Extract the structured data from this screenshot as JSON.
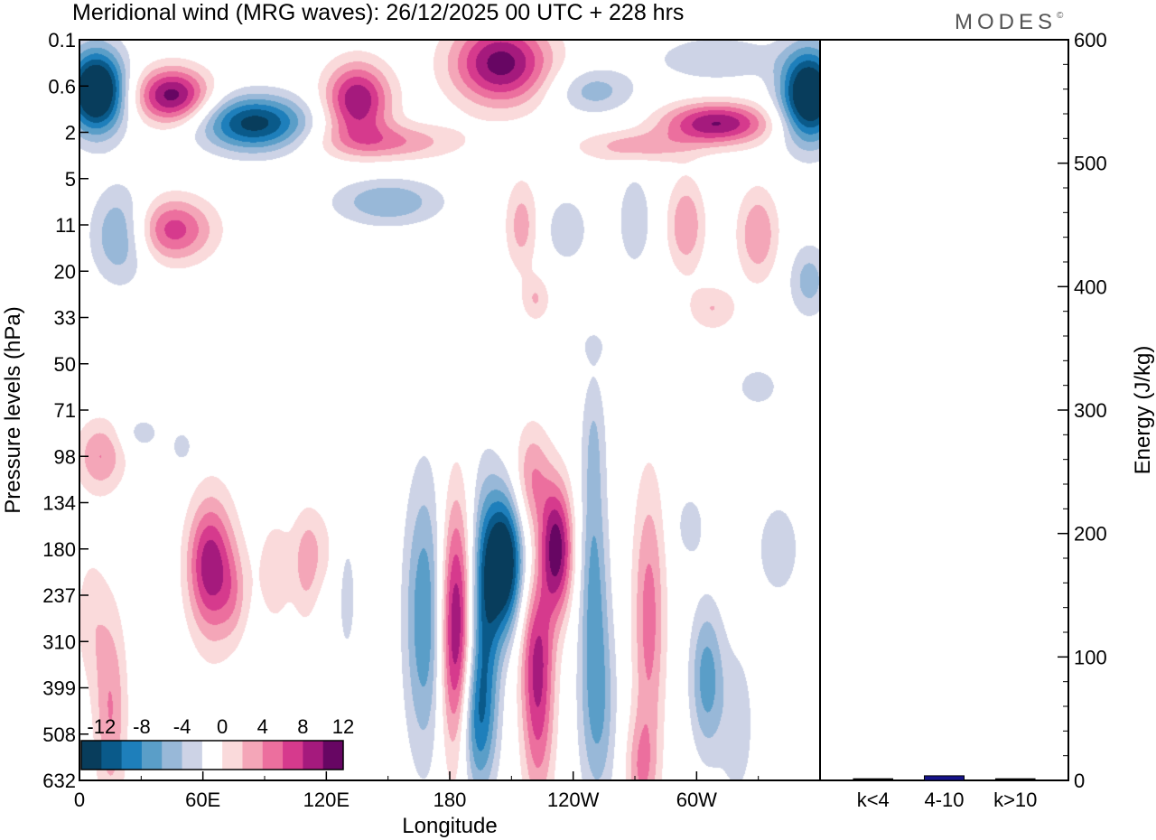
{
  "title": "Meridional wind (MRG waves):  26/12/2025  00 UTC  + 228 hrs",
  "brand": "MODES",
  "brand_mark": "©",
  "chart_data": [
    {
      "type": "heatmap",
      "title": "Meridional wind (MRG waves):  26/12/2025  00 UTC  + 228 hrs",
      "xlabel": "Longitude",
      "ylabel": "Pressure levels (hPa)",
      "x_ticks": [
        {
          "lon": 0,
          "label": "0"
        },
        {
          "lon": 60,
          "label": "60E"
        },
        {
          "lon": 120,
          "label": "120E"
        },
        {
          "lon": 180,
          "label": "180"
        },
        {
          "lon": 240,
          "label": "120W"
        },
        {
          "lon": 300,
          "label": "60W"
        }
      ],
      "xlim": [
        0,
        360
      ],
      "y_levels": [
        "0.1",
        "0.6",
        "2",
        "5",
        "11",
        "20",
        "33",
        "50",
        "71",
        "98",
        "134",
        "180",
        "237",
        "310",
        "399",
        "508",
        "632"
      ],
      "colorbar": {
        "ticks": [
          "-12",
          "-8",
          "-4",
          "0",
          "4",
          "8",
          "12"
        ],
        "bins": [
          -14,
          -12,
          -10,
          -8,
          -6,
          -4,
          -2,
          2,
          4,
          6,
          8,
          10,
          12,
          14
        ],
        "colors": [
          "#083d5c",
          "#0a5a8a",
          "#1e7fbb",
          "#5a9ec8",
          "#98b8d8",
          "#cdd3e6",
          "#ffffff",
          "#fadadb",
          "#f4a6b8",
          "#ec6f9e",
          "#d63a8d",
          "#a51a7d",
          "#670663"
        ]
      },
      "blobs": [
        {
          "lon": 8,
          "lev": 1.1,
          "rx": 14,
          "ry": 0.9,
          "amp": -18
        },
        {
          "lon": 355,
          "lev": 1.2,
          "rx": 14,
          "ry": 1.0,
          "amp": -17
        },
        {
          "lon": 45,
          "lev": 1.2,
          "rx": 18,
          "ry": 0.6,
          "amp": 13
        },
        {
          "lon": 85,
          "lev": 1.8,
          "rx": 26,
          "ry": 0.6,
          "amp": -13
        },
        {
          "lon": 135,
          "lev": 1.3,
          "rx": 16,
          "ry": 0.8,
          "amp": 12
        },
        {
          "lon": 150,
          "lev": 2.2,
          "rx": 34,
          "ry": 0.4,
          "amp": 6
        },
        {
          "lon": 205,
          "lev": 0.5,
          "rx": 24,
          "ry": 0.9,
          "amp": 13
        },
        {
          "lon": 250,
          "lev": 1.1,
          "rx": 20,
          "ry": 0.5,
          "amp": -5
        },
        {
          "lon": 310,
          "lev": 1.8,
          "rx": 26,
          "ry": 0.45,
          "amp": 12
        },
        {
          "lon": 270,
          "lev": 2.3,
          "rx": 28,
          "ry": 0.35,
          "amp": 5
        },
        {
          "lon": 310,
          "lev": 0.4,
          "rx": 30,
          "ry": 0.5,
          "amp": -4
        },
        {
          "lon": 20,
          "lev": 4.2,
          "rx": 14,
          "ry": 1.0,
          "amp": -7
        },
        {
          "lon": 45,
          "lev": 4.1,
          "rx": 20,
          "ry": 0.7,
          "amp": 9
        },
        {
          "lon": 150,
          "lev": 3.5,
          "rx": 26,
          "ry": 0.5,
          "amp": -6
        },
        {
          "lon": 215,
          "lev": 4.0,
          "rx": 8,
          "ry": 1.0,
          "amp": 5
        },
        {
          "lon": 237,
          "lev": 4.1,
          "rx": 10,
          "ry": 0.7,
          "amp": -4
        },
        {
          "lon": 270,
          "lev": 3.9,
          "rx": 8,
          "ry": 1.0,
          "amp": -4
        },
        {
          "lon": 295,
          "lev": 4.0,
          "rx": 9,
          "ry": 1.0,
          "amp": 6
        },
        {
          "lon": 330,
          "lev": 4.2,
          "rx": 10,
          "ry": 1.0,
          "amp": 6
        },
        {
          "lon": 355,
          "lev": 5.2,
          "rx": 10,
          "ry": 0.8,
          "amp": -5
        },
        {
          "lon": 222,
          "lev": 5.6,
          "rx": 7,
          "ry": 0.5,
          "amp": 4
        },
        {
          "lon": 308,
          "lev": 5.8,
          "rx": 12,
          "ry": 0.5,
          "amp": 4
        },
        {
          "lon": 10,
          "lev": 9.0,
          "rx": 12,
          "ry": 0.8,
          "amp": 6
        },
        {
          "lon": 30,
          "lev": 8.5,
          "rx": 10,
          "ry": 0.4,
          "amp": -3
        },
        {
          "lon": 65,
          "lev": 11.5,
          "rx": 12,
          "ry": 1.7,
          "amp": 7
        },
        {
          "lon": 95,
          "lev": 11.5,
          "rx": 10,
          "ry": 1.4,
          "amp": 3
        },
        {
          "lon": 115,
          "lev": 11.0,
          "rx": 10,
          "ry": 1.0,
          "amp": 3
        },
        {
          "lon": 168,
          "lev": 12.5,
          "rx": 10,
          "ry": 3.0,
          "amp": -8
        },
        {
          "lon": 183,
          "lev": 12.8,
          "rx": 8,
          "ry": 2.8,
          "amp": 13
        },
        {
          "lon": 197,
          "lev": 12.2,
          "rx": 8,
          "ry": 2.6,
          "amp": -9
        },
        {
          "lon": 207,
          "lev": 11.3,
          "rx": 9,
          "ry": 1.5,
          "amp": -15
        },
        {
          "lon": 193,
          "lev": 14.8,
          "rx": 9,
          "ry": 1.6,
          "amp": -8
        },
        {
          "lon": 220,
          "lev": 9.5,
          "rx": 9,
          "ry": 1.2,
          "amp": 6
        },
        {
          "lon": 223,
          "lev": 14.5,
          "rx": 8,
          "ry": 2.2,
          "amp": 8
        },
        {
          "lon": 232,
          "lev": 11.0,
          "rx": 8,
          "ry": 1.4,
          "amp": 13
        },
        {
          "lon": 222,
          "lev": 13.0,
          "rx": 9,
          "ry": 1.5,
          "amp": 5
        },
        {
          "lon": 250,
          "lev": 11.5,
          "rx": 7,
          "ry": 2.5,
          "amp": -6
        },
        {
          "lon": 252,
          "lev": 14.5,
          "rx": 9,
          "ry": 2.2,
          "amp": -6
        },
        {
          "lon": 250,
          "lev": 8.5,
          "rx": 6,
          "ry": 1.5,
          "amp": -3
        },
        {
          "lon": 277,
          "lev": 12.5,
          "rx": 8,
          "ry": 3.0,
          "amp": 7
        },
        {
          "lon": 273,
          "lev": 15.8,
          "rx": 8,
          "ry": 1.2,
          "amp": 5
        },
        {
          "lon": 297,
          "lev": 10.5,
          "rx": 8,
          "ry": 0.8,
          "amp": -3
        },
        {
          "lon": 305,
          "lev": 13.8,
          "rx": 8,
          "ry": 1.6,
          "amp": -7
        },
        {
          "lon": 320,
          "lev": 14.8,
          "rx": 10,
          "ry": 2.0,
          "amp": -3
        },
        {
          "lon": 340,
          "lev": 11.0,
          "rx": 10,
          "ry": 1.0,
          "amp": -4
        },
        {
          "lon": 330,
          "lev": 7.5,
          "rx": 12,
          "ry": 0.5,
          "amp": -3
        },
        {
          "lon": 62,
          "lev": 11.3,
          "rx": 10,
          "ry": 1.2,
          "amp": 5
        },
        {
          "lon": 75,
          "lev": 12.0,
          "rx": 7,
          "ry": 1.0,
          "amp": 3
        },
        {
          "lon": 110,
          "lev": 11.5,
          "rx": 6,
          "ry": 1.2,
          "amp": 3
        },
        {
          "lon": 130,
          "lev": 12.0,
          "rx": 5,
          "ry": 1.5,
          "amp": -3
        },
        {
          "lon": 15,
          "lev": 14.5,
          "rx": 8,
          "ry": 2.2,
          "amp": 6
        },
        {
          "lon": 5,
          "lev": 12.5,
          "rx": 8,
          "ry": 1.5,
          "amp": 3
        },
        {
          "lon": 50,
          "lev": 8.8,
          "rx": 6,
          "ry": 0.4,
          "amp": -3
        },
        {
          "lon": 250,
          "lev": 6.6,
          "rx": 8,
          "ry": 0.4,
          "amp": -2
        },
        {
          "lon": 300,
          "lev": 8.8,
          "rx": 6,
          "ry": 0.4,
          "amp": 2
        }
      ]
    },
    {
      "type": "bar",
      "categories": [
        "k<4",
        "4-10",
        "k>10"
      ],
      "values": [
        0,
        3,
        0
      ],
      "ylabel": "Energy (J/kg)",
      "ylim": [
        0,
        600
      ],
      "y_ticks": [
        "0",
        "100",
        "200",
        "300",
        "400",
        "500",
        "600"
      ],
      "bar_color": "#16138a"
    }
  ]
}
